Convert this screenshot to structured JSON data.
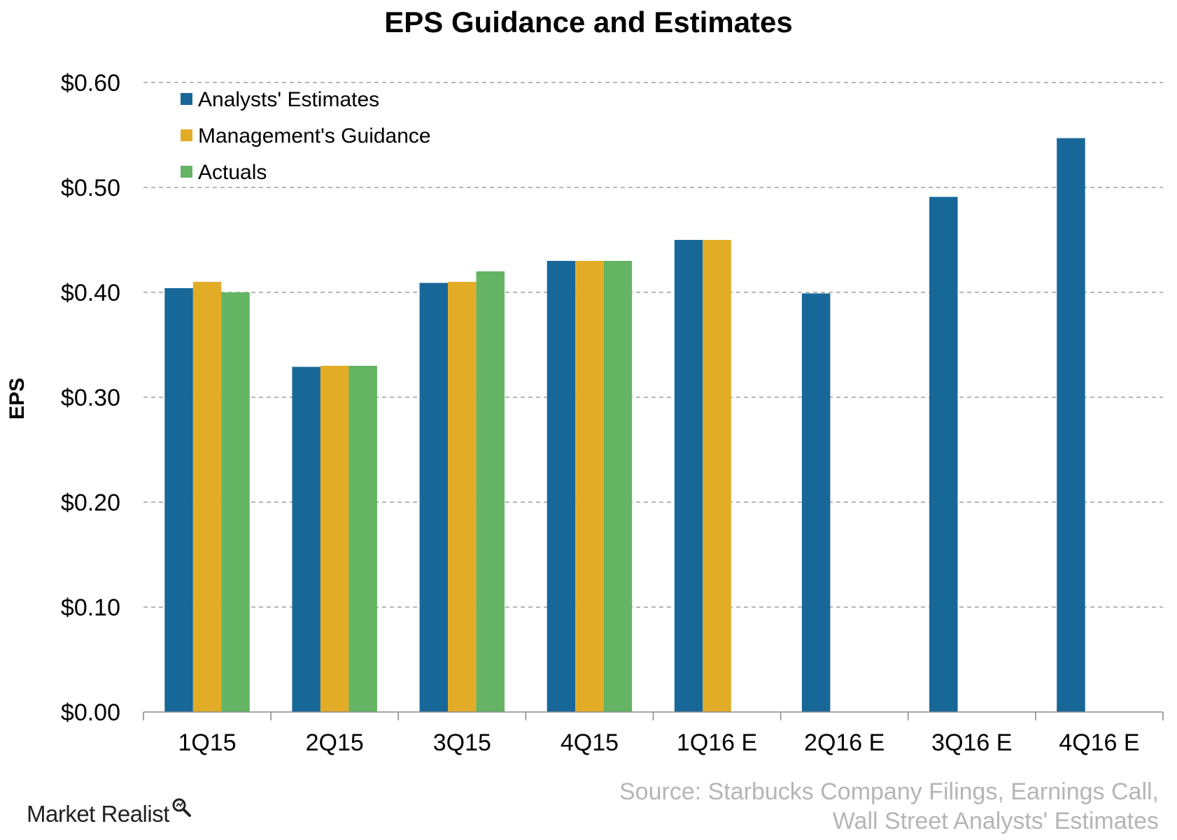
{
  "chart_data": {
    "type": "bar",
    "title": "EPS Guidance and Estimates",
    "ylabel": "EPS",
    "xlabel": "",
    "ylim": [
      0,
      0.6
    ],
    "yticks": [
      0,
      0.1,
      0.2,
      0.3,
      0.4,
      0.5,
      0.6
    ],
    "ytick_labels": [
      "$0.00",
      "$0.10",
      "$0.20",
      "$0.30",
      "$0.40",
      "$0.50",
      "$0.60"
    ],
    "grid": "horizontal-dashed",
    "legend_position": "top-left",
    "categories": [
      "1Q15",
      "2Q15",
      "3Q15",
      "4Q15",
      "1Q16 E",
      "2Q16 E",
      "3Q16 E",
      "4Q16 E"
    ],
    "series": [
      {
        "name": "Analysts' Estimates",
        "color": "#186799",
        "values": [
          0.404,
          0.329,
          0.409,
          0.43,
          0.45,
          0.399,
          0.491,
          0.547
        ]
      },
      {
        "name": "Management's Guidance",
        "color": "#e2ac27",
        "values": [
          0.41,
          0.33,
          0.41,
          0.43,
          0.45,
          null,
          null,
          null
        ]
      },
      {
        "name": "Actuals",
        "color": "#64b463",
        "values": [
          0.4,
          0.33,
          0.42,
          0.43,
          null,
          null,
          null,
          null
        ]
      }
    ]
  },
  "source": {
    "line1": "Source: Starbucks Company Filings, Earnings Call,",
    "line2": "Wall Street Analysts' Estimates"
  },
  "branding": {
    "logo_text": "Market Realist",
    "logo_icon": "magnifier-icon"
  }
}
